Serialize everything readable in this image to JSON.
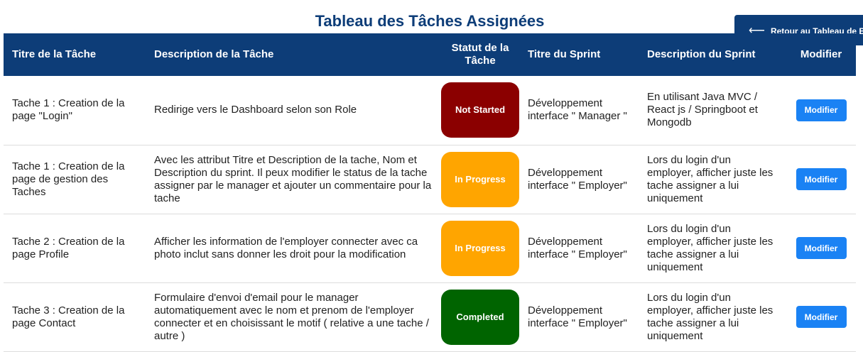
{
  "page": {
    "title": "Tableau des Tâches Assignées"
  },
  "back_button": {
    "label": "Retour au Tableau de Bord",
    "icon": "arrow-left-icon"
  },
  "table": {
    "headers": {
      "task_title": "Titre de la Tâche",
      "task_description": "Description de la Tâche",
      "task_status": "Statut de la Tâche",
      "sprint_title": "Titre du Sprint",
      "sprint_description": "Description du Sprint",
      "edit": "Modifier"
    },
    "status_colors": {
      "Not Started": "#8b0000",
      "In Progress": "#ffa500",
      "Completed": "#006400"
    },
    "rows": [
      {
        "task_title": "Tache 1 : Creation de la page \"Login\"",
        "task_description": "Redirige vers le Dashboard selon son Role",
        "status": "Not Started",
        "sprint_title": "Développement interface \" Manager \"",
        "sprint_description": "En utilisant Java MVC / React js / Springboot et Mongodb",
        "edit_label": "Modifier"
      },
      {
        "task_title": "Tache 1 : Creation de la page de gestion des Taches",
        "task_description": "Avec les attribut Titre et Description de la tache, Nom et Description du sprint. Il peux modifier le status de la tache assigner par le manager et ajouter un commentaire pour la tache",
        "status": "In Progress",
        "sprint_title": "Développement interface \" Employer\"",
        "sprint_description": "Lors du login d'un employer, afficher juste les tache assigner a lui uniquement",
        "edit_label": "Modifier"
      },
      {
        "task_title": "Tache 2 : Creation de la page Profile",
        "task_description": "Afficher les information de l'employer connecter avec ca photo inclut sans donner les droit pour la modification",
        "status": "In Progress",
        "sprint_title": "Développement interface \" Employer\"",
        "sprint_description": "Lors du login d'un employer, afficher juste les tache assigner a lui uniquement",
        "edit_label": "Modifier"
      },
      {
        "task_title": "Tache 3 : Creation de la page Contact",
        "task_description": "Formulaire d'envoi d'email pour le manager automatiquement avec le nom et prenom de l'employer connecter et en choisissant le motif ( relative a une tache / autre )",
        "status": "Completed",
        "sprint_title": "Développement interface \" Employer\"",
        "sprint_description": "Lors du login d'un employer, afficher juste les tache assigner a lui uniquement",
        "edit_label": "Modifier"
      }
    ]
  }
}
